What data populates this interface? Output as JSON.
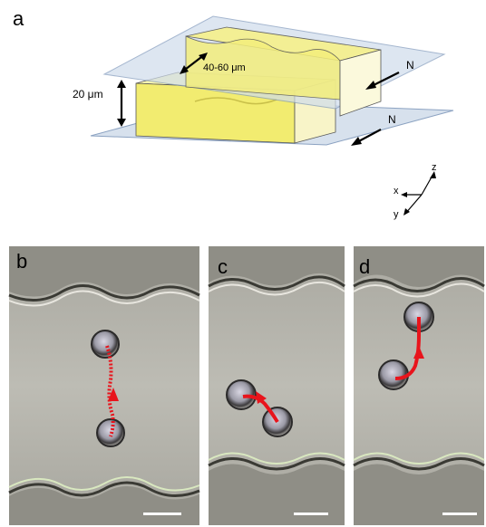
{
  "panels": {
    "a": {
      "label": "a"
    },
    "b": {
      "label": "b"
    },
    "c": {
      "label": "c"
    },
    "d": {
      "label": "d"
    }
  },
  "schematic": {
    "width_label": "40-60 μm",
    "height_label": "20 μm",
    "field_label_top": "N",
    "field_label_bottom": "N",
    "axis_z": "z",
    "axis_x": "x",
    "axis_y": "y"
  },
  "colors": {
    "glass": "#cfdcec",
    "channel_wall": "#f5f08a",
    "track": "#e8141c",
    "micrograph_bg": "#b8b6ae"
  }
}
